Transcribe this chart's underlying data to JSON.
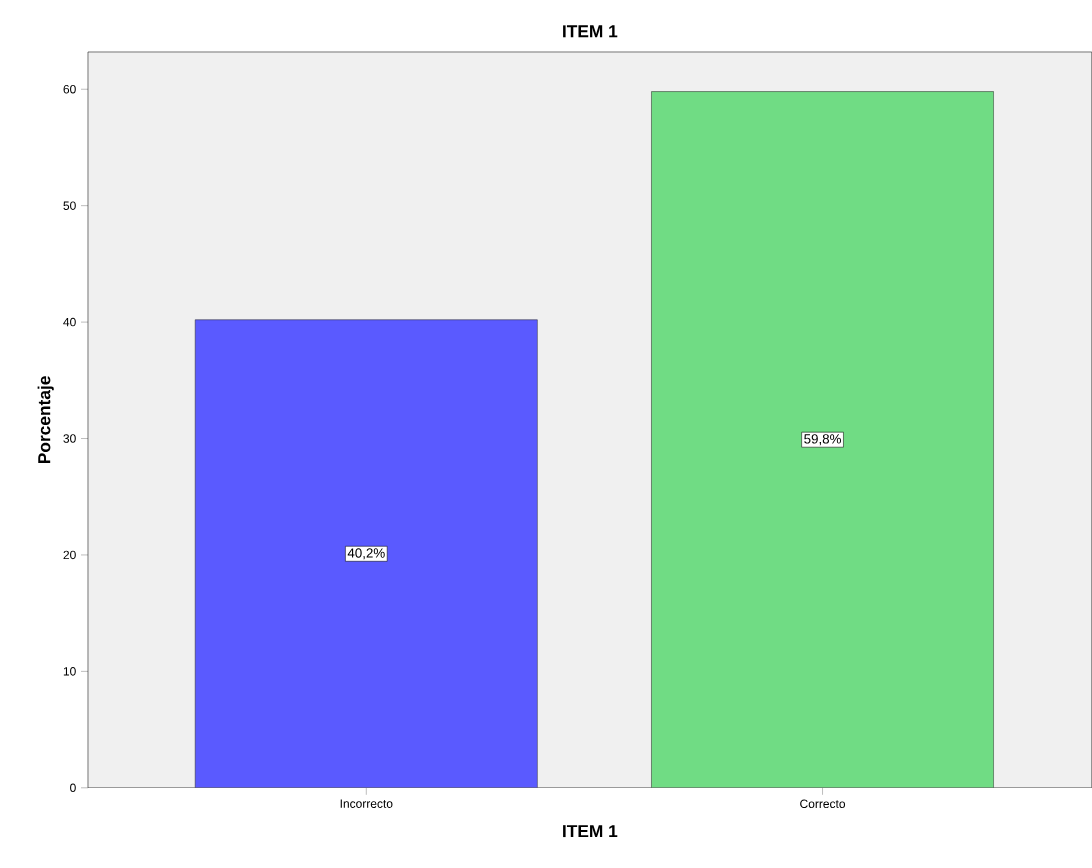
{
  "chart_data": {
    "type": "bar",
    "title": "ITEM 1",
    "xlabel": "ITEM 1",
    "ylabel": "Porcentaje",
    "categories": [
      "Incorrecto",
      "Correcto"
    ],
    "values": [
      40.2,
      59.8
    ],
    "colors": [
      "#5a5aff",
      "#70dc84"
    ],
    "value_labels": [
      "40,2%",
      "59,8%"
    ],
    "ylim": [
      0,
      63.2
    ],
    "yticks": [
      0,
      10,
      20,
      30,
      40,
      50,
      60
    ],
    "grid": false
  }
}
